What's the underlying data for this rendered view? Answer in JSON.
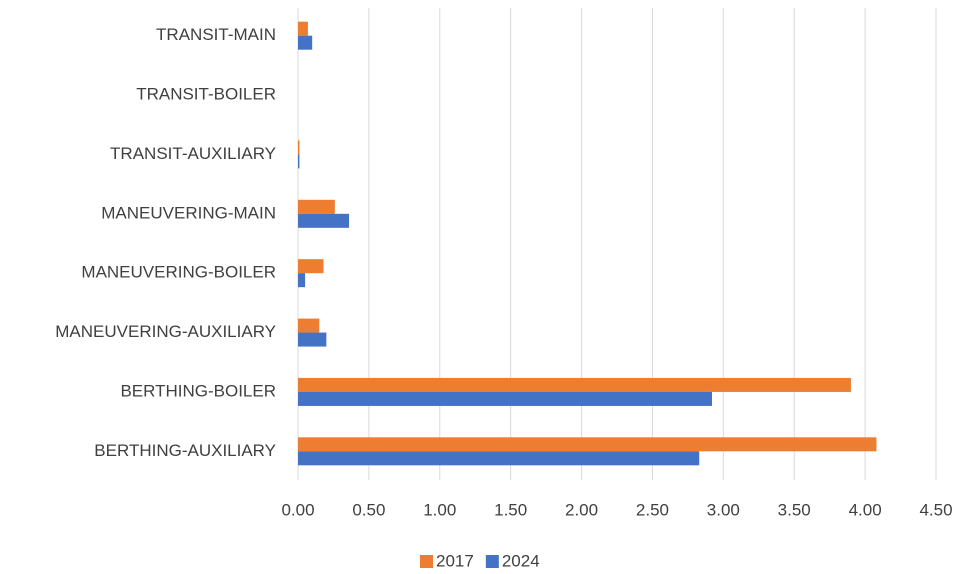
{
  "chart_data": {
    "type": "bar",
    "orientation": "horizontal",
    "categories": [
      "TRANSIT-MAIN",
      "TRANSIT-BOILER",
      "TRANSIT-AUXILIARY",
      "MANEUVERING-MAIN",
      "MANEUVERING-BOILER",
      "MANEUVERING-AUXILIARY",
      "BERTHING-BOILER",
      "BERTHING-AUXILIARY"
    ],
    "series": [
      {
        "name": "2017",
        "color": "#ED7D31",
        "values": [
          0.07,
          0,
          0.01,
          0.26,
          0.18,
          0.15,
          3.9,
          4.08
        ]
      },
      {
        "name": "2024",
        "color": "#4472C4",
        "values": [
          0.1,
          0,
          0.01,
          0.36,
          0.05,
          0.2,
          2.92,
          2.83
        ]
      }
    ],
    "xlim": [
      0,
      4.5
    ],
    "xticks": [
      {
        "value": 0,
        "label": "0.00"
      },
      {
        "value": 0.5,
        "label": "0.50"
      },
      {
        "value": 1,
        "label": "1.00"
      },
      {
        "value": 1.5,
        "label": "1.50"
      },
      {
        "value": 2,
        "label": "2.00"
      },
      {
        "value": 2.5,
        "label": "2.50"
      },
      {
        "value": 3,
        "label": "3.00"
      },
      {
        "value": 3.5,
        "label": "3.50"
      },
      {
        "value": 4,
        "label": "4.00"
      },
      {
        "value": 4.5,
        "label": "4.50"
      }
    ],
    "grid": true,
    "legend": "bottom"
  }
}
